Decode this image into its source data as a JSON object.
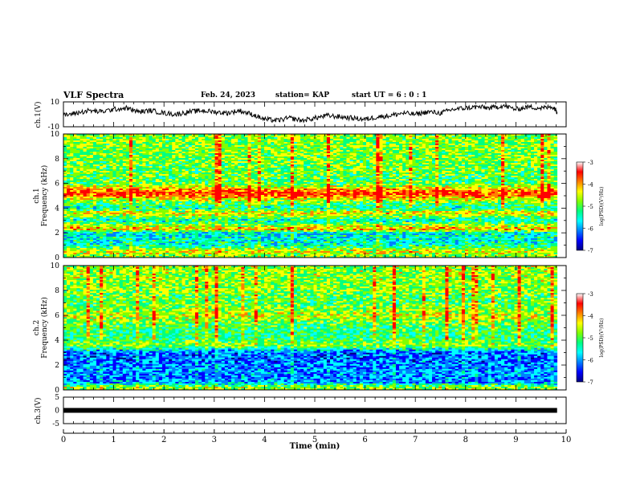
{
  "header": {
    "title": "VLF Spectra",
    "date": "Feb. 24, 2023",
    "station": "station= KAP",
    "start": "start UT =  6 : 0 : 1"
  },
  "colors": {
    "trace": "#000000",
    "axis": "#000000",
    "background": "#ffffff"
  },
  "colormap": [
    "#000080",
    "#0000ff",
    "#0080ff",
    "#00ffff",
    "#00ff80",
    "#80ff00",
    "#ffff00",
    "#ff8000",
    "#ff0000",
    "#ffffff"
  ],
  "chart_data": [
    {
      "type": "line",
      "ylabel": "ch.1(V)",
      "ylim": [
        -10,
        10
      ],
      "yticklabels": [
        "10",
        "-10"
      ],
      "xlim": [
        0,
        10
      ],
      "x": [
        0,
        0.25,
        0.5,
        0.75,
        1,
        1.25,
        1.5,
        1.75,
        2,
        2.25,
        2.5,
        2.75,
        3,
        3.25,
        3.5,
        3.75,
        4,
        4.25,
        4.5,
        4.75,
        5,
        5.25,
        5.5,
        5.75,
        6,
        6.25,
        6.5,
        6.75,
        7,
        7.25,
        7.5,
        7.75,
        8,
        8.25,
        8.5,
        8.75,
        9,
        9.25,
        9.5,
        9.75,
        9.82
      ],
      "y": [
        -1,
        1,
        3,
        2,
        4,
        5,
        2,
        3,
        1,
        0,
        2,
        3,
        2,
        1,
        3,
        0,
        -4,
        -5,
        -3,
        -5,
        -3,
        -1,
        -2,
        -3,
        -4,
        -2,
        -1,
        1,
        0,
        2,
        1,
        4,
        5,
        6,
        5,
        7,
        4,
        6,
        5,
        6,
        2
      ]
    },
    {
      "type": "heatmap",
      "ylabel": "ch.1\nFrequency (kHz)",
      "ylim": [
        0,
        10
      ],
      "yticks": [
        0,
        2,
        4,
        6,
        8,
        10
      ],
      "yticklabels": [
        "0",
        "2",
        "4",
        "6",
        "8",
        "10"
      ],
      "xlim": [
        0,
        10
      ],
      "data_end_min": 9.82,
      "colorbar": {
        "label": "log(PSD)(V²/Hz)",
        "range": [
          -7,
          -3
        ],
        "ticklabels": [
          "-3",
          "-4",
          "-5",
          "-6",
          "-7"
        ]
      },
      "band_profile_log_psd": [
        {
          "freq_khz": 0.2,
          "value": -4.4
        },
        {
          "freq_khz": 0.5,
          "value": -4.2
        },
        {
          "freq_khz": 1.0,
          "value": -5.2
        },
        {
          "freq_khz": 1.5,
          "value": -5.3
        },
        {
          "freq_khz": 2.0,
          "value": -5.4
        },
        {
          "freq_khz": 2.3,
          "value": -3.8
        },
        {
          "freq_khz": 3.0,
          "value": -5.3
        },
        {
          "freq_khz": 3.6,
          "value": -4.0
        },
        {
          "freq_khz": 4.0,
          "value": -5.2
        },
        {
          "freq_khz": 4.5,
          "value": -4.7
        },
        {
          "freq_khz": 5.2,
          "value": -3.2
        },
        {
          "freq_khz": 6.0,
          "value": -4.8
        },
        {
          "freq_khz": 7.0,
          "value": -4.7
        },
        {
          "freq_khz": 8.0,
          "value": -4.6
        },
        {
          "freq_khz": 9.0,
          "value": -4.6
        },
        {
          "freq_khz": 10.0,
          "value": -4.6
        }
      ]
    },
    {
      "type": "heatmap",
      "ylabel": "ch.2\nFrequency (kHz)",
      "ylim": [
        0,
        10
      ],
      "yticks": [
        0,
        2,
        4,
        6,
        8,
        10
      ],
      "yticklabels": [
        "0",
        "2",
        "4",
        "6",
        "8",
        "10"
      ],
      "xlim": [
        0,
        10
      ],
      "data_end_min": 9.82,
      "colorbar": {
        "label": "log(PSD)(V²/Hz)",
        "range": [
          -7,
          -3
        ],
        "ticklabels": [
          "-3",
          "-4",
          "-5",
          "-6",
          "-7"
        ]
      },
      "band_profile_log_psd": [
        {
          "freq_khz": 0.2,
          "value": -4.3
        },
        {
          "freq_khz": 0.6,
          "value": -5.8
        },
        {
          "freq_khz": 1.0,
          "value": -5.9
        },
        {
          "freq_khz": 1.5,
          "value": -5.8
        },
        {
          "freq_khz": 2.0,
          "value": -5.9
        },
        {
          "freq_khz": 2.5,
          "value": -6.0
        },
        {
          "freq_khz": 3.0,
          "value": -6.0
        },
        {
          "freq_khz": 3.6,
          "value": -4.5
        },
        {
          "freq_khz": 4.2,
          "value": -5.0
        },
        {
          "freq_khz": 5.0,
          "value": -4.9
        },
        {
          "freq_khz": 6.0,
          "value": -4.3
        },
        {
          "freq_khz": 7.0,
          "value": -4.8
        },
        {
          "freq_khz": 8.0,
          "value": -4.6
        },
        {
          "freq_khz": 9.0,
          "value": -4.5
        },
        {
          "freq_khz": 10.0,
          "value": -4.5
        }
      ]
    },
    {
      "type": "line",
      "ylabel": "ch.3(V)",
      "ylim": [
        -5,
        5
      ],
      "yticklabels": [
        "5",
        "0",
        "-5"
      ],
      "xlim": [
        0,
        10
      ],
      "x": [
        0,
        9.82
      ],
      "y": [
        0,
        0
      ]
    }
  ],
  "xaxis": {
    "label": "Time (min)",
    "ticklabels": [
      "0",
      "1",
      "2",
      "3",
      "4",
      "5",
      "6",
      "7",
      "8",
      "9",
      "10"
    ]
  }
}
